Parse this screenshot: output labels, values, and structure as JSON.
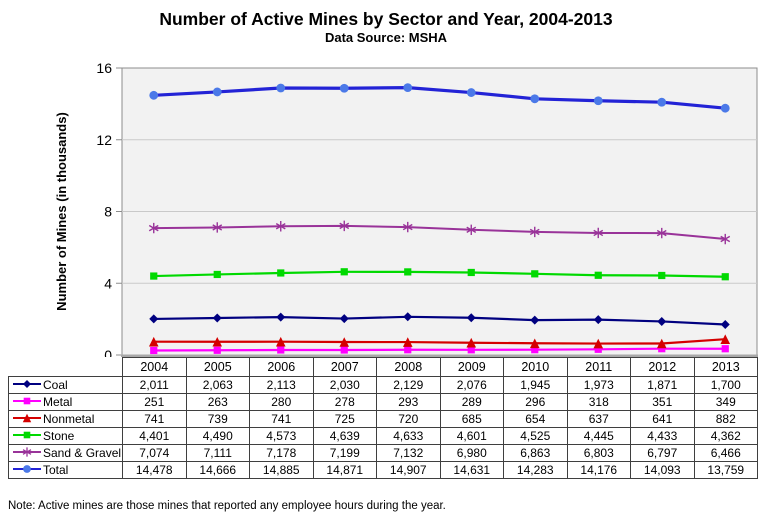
{
  "page": {
    "title": "Number of Active Mines by Sector and Year, 2004-2013",
    "subtitle": "Data Source: MSHA",
    "note": "Note: Active mines are those mines that reported any employee hours during the year."
  },
  "chart_data": {
    "type": "line",
    "title": "Number of Active Mines by Sector and Year, 2004-2013",
    "subtitle": "Data Source: MSHA",
    "xlabel": "",
    "ylabel": "Number of Mines (in thousands)",
    "ylim": [
      0,
      16
    ],
    "yticks": [
      0,
      4,
      8,
      12,
      16
    ],
    "values_unit": "mines (table shows counts; plotted in thousands)",
    "grid": true,
    "legend_position": "left column of data table below chart",
    "plot_bg_color": "#F2F2F2",
    "grid_color": "#C9C9C9",
    "plot_border_color": "#8C8C8C",
    "x_axis_line_color": "#A8A8A8",
    "categories": [
      "2004",
      "2005",
      "2006",
      "2007",
      "2008",
      "2009",
      "2010",
      "2011",
      "2012",
      "2013"
    ],
    "series": [
      {
        "name": "Coal",
        "marker": "diamond",
        "color": "#000080",
        "line_width": 2.2,
        "values": [
          2011,
          2063,
          2113,
          2030,
          2129,
          2076,
          1945,
          1973,
          1871,
          1700
        ],
        "display": [
          "2,011",
          "2,063",
          "2,113",
          "2,030",
          "2,129",
          "2,076",
          "1,945",
          "1,973",
          "1,871",
          "1,700"
        ]
      },
      {
        "name": "Metal",
        "marker": "square",
        "color": "#FF00FF",
        "line_width": 2.2,
        "values": [
          251,
          263,
          280,
          278,
          293,
          289,
          296,
          318,
          351,
          349
        ],
        "display": [
          "251",
          "263",
          "280",
          "278",
          "293",
          "289",
          "296",
          "318",
          "351",
          "349"
        ]
      },
      {
        "name": "Nonmetal",
        "marker": "triangle",
        "color": "#D40000",
        "line_width": 2.2,
        "values": [
          741,
          739,
          741,
          725,
          720,
          685,
          654,
          637,
          641,
          882
        ],
        "display": [
          "741",
          "739",
          "741",
          "725",
          "720",
          "685",
          "654",
          "637",
          "641",
          "882"
        ]
      },
      {
        "name": "Stone",
        "marker": "square",
        "color": "#00D900",
        "line_width": 2.2,
        "values": [
          4401,
          4490,
          4573,
          4639,
          4633,
          4601,
          4525,
          4445,
          4433,
          4362
        ],
        "display": [
          "4,401",
          "4,490",
          "4,573",
          "4,639",
          "4,633",
          "4,601",
          "4,525",
          "4,445",
          "4,433",
          "4,362"
        ]
      },
      {
        "name": "Sand & Gravel",
        "marker": "star",
        "color": "#993399",
        "line_width": 2,
        "values": [
          7074,
          7111,
          7178,
          7199,
          7132,
          6980,
          6863,
          6803,
          6797,
          6466
        ],
        "display": [
          "7,074",
          "7,111",
          "7,178",
          "7,199",
          "7,132",
          "6,980",
          "6,863",
          "6,803",
          "6,797",
          "6,466"
        ]
      },
      {
        "name": "Total",
        "marker": "circle",
        "color": "#2323D6",
        "marker_color": "#4B79E8",
        "line_width": 3.2,
        "values": [
          14478,
          14666,
          14885,
          14871,
          14907,
          14631,
          14283,
          14176,
          14093,
          13759
        ],
        "display": [
          "14,478",
          "14,666",
          "14,885",
          "14,871",
          "14,907",
          "14,631",
          "14,283",
          "14,176",
          "14,093",
          "13,759"
        ]
      }
    ]
  }
}
